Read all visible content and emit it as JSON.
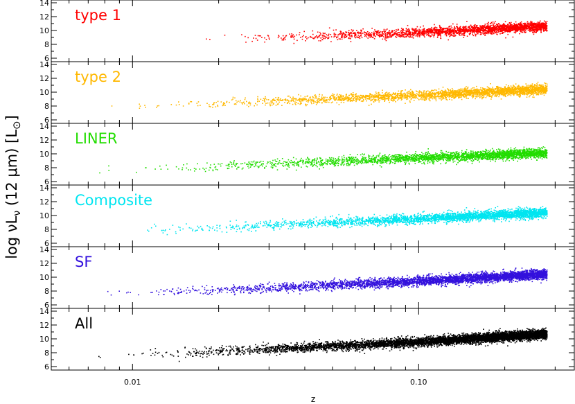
{
  "chart_data": {
    "type": "scatter",
    "layout": "six vertically stacked panels sharing x axis",
    "xlabel": "z",
    "ylabel_parts": {
      "pre": "log ",
      "nu": "ν",
      "L": "L",
      "sub_nu": "ν",
      "paren": " (12 ",
      "mu": "μ",
      "m": "m) [L",
      "sun": "⊙",
      "close": "]"
    },
    "xscale": "log",
    "xlim": [
      0.0052,
      0.35
    ],
    "xticks": [
      0.01,
      0.1
    ],
    "xtick_labels": [
      "0.01",
      "0.10"
    ],
    "ylim": [
      6,
      14
    ],
    "yticks": [
      6,
      8,
      10,
      12,
      14
    ],
    "ytick_labels": [
      "6",
      "8",
      "10",
      "12",
      "14"
    ],
    "grid": false,
    "panels": [
      {
        "label": "type 1",
        "color": "#ff0000",
        "x_min": 0.013,
        "x_max": 0.28,
        "n_points": 2500,
        "trend": [
          [
            0.013,
            8.6
          ],
          [
            0.03,
            9.0
          ],
          [
            0.1,
            9.8
          ],
          [
            0.28,
            10.7
          ]
        ]
      },
      {
        "label": "type 2",
        "color": "#ffb800",
        "x_min": 0.006,
        "x_max": 0.28,
        "n_points": 2800,
        "trend": [
          [
            0.006,
            7.7
          ],
          [
            0.03,
            8.7
          ],
          [
            0.1,
            9.6
          ],
          [
            0.28,
            10.5
          ]
        ]
      },
      {
        "label": "LINER",
        "color": "#22dd00",
        "x_min": 0.0062,
        "x_max": 0.28,
        "n_points": 2800,
        "trend": [
          [
            0.0062,
            7.6
          ],
          [
            0.03,
            8.6
          ],
          [
            0.1,
            9.5
          ],
          [
            0.28,
            10.2
          ]
        ]
      },
      {
        "label": "Composite",
        "color": "#00e5f0",
        "x_min": 0.006,
        "x_max": 0.28,
        "n_points": 3200,
        "trend": [
          [
            0.006,
            7.3
          ],
          [
            0.03,
            8.7
          ],
          [
            0.1,
            9.6
          ],
          [
            0.28,
            10.5
          ]
        ]
      },
      {
        "label": "SF",
        "color": "#3311dd",
        "x_min": 0.0058,
        "x_max": 0.28,
        "n_points": 4500,
        "trend": [
          [
            0.0058,
            7.3
          ],
          [
            0.03,
            8.5
          ],
          [
            0.1,
            9.5
          ],
          [
            0.28,
            10.5
          ]
        ]
      },
      {
        "label": "All",
        "color": "#000000",
        "x_min": 0.0058,
        "x_max": 0.28,
        "n_points": 6500,
        "trend": [
          [
            0.0058,
            7.3
          ],
          [
            0.03,
            8.6
          ],
          [
            0.1,
            9.6
          ],
          [
            0.28,
            10.8
          ]
        ]
      }
    ]
  }
}
